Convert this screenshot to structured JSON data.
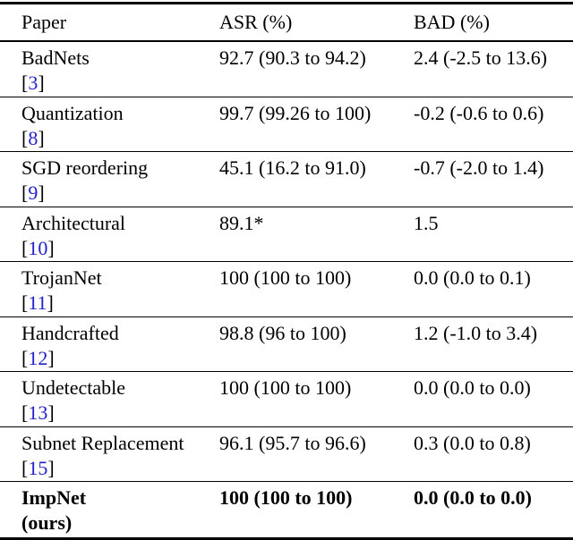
{
  "table": {
    "columns": [
      "Paper",
      "ASR (%)",
      "BAD (%)"
    ],
    "citation_open": "[",
    "citation_close": "]",
    "colors": {
      "text": "#000000",
      "citation_link": "#2222cc",
      "rule": "#000000",
      "background": "#ffffff"
    },
    "rows": [
      {
        "paper": "BadNets",
        "cite_num": "3",
        "asr": "92.7 (90.3 to 94.2)",
        "bad": "2.4 (-2.5 to 13.6)",
        "bold": false
      },
      {
        "paper": "Quantization",
        "cite_num": "8",
        "asr": "99.7 (99.26 to 100)",
        "bad": "-0.2 (-0.6 to 0.6)",
        "bold": false
      },
      {
        "paper": "SGD reordering",
        "cite_num": "9",
        "asr": "45.1 (16.2 to 91.0)",
        "bad": "-0.7 (-2.0 to 1.4)",
        "bold": false
      },
      {
        "paper": "Architectural",
        "cite_num": "10",
        "asr": "89.1*",
        "bad": "1.5",
        "bold": false
      },
      {
        "paper": "TrojanNet",
        "cite_num": "11",
        "asr": "100 (100 to 100)",
        "bad": "0.0 (0.0 to 0.1)",
        "bold": false
      },
      {
        "paper": "Handcrafted",
        "cite_num": "12",
        "asr": "98.8 (96 to 100)",
        "bad": "1.2 (-1.0 to 3.4)",
        "bold": false
      },
      {
        "paper": "Undetectable",
        "cite_num": "13",
        "asr": "100 (100 to 100)",
        "bad": "0.0 (0.0 to 0.0)",
        "bold": false
      },
      {
        "paper": "Subnet Replacement",
        "cite_num": "15",
        "asr": "96.1 (95.7 to 96.6)",
        "bad": "0.3 (0.0 to 0.8)",
        "bold": false
      },
      {
        "paper": "ImpNet",
        "note": "(ours)",
        "asr": "100 (100 to 100)",
        "bad": "0.0 (0.0 to 0.0)",
        "bold": true
      }
    ]
  }
}
